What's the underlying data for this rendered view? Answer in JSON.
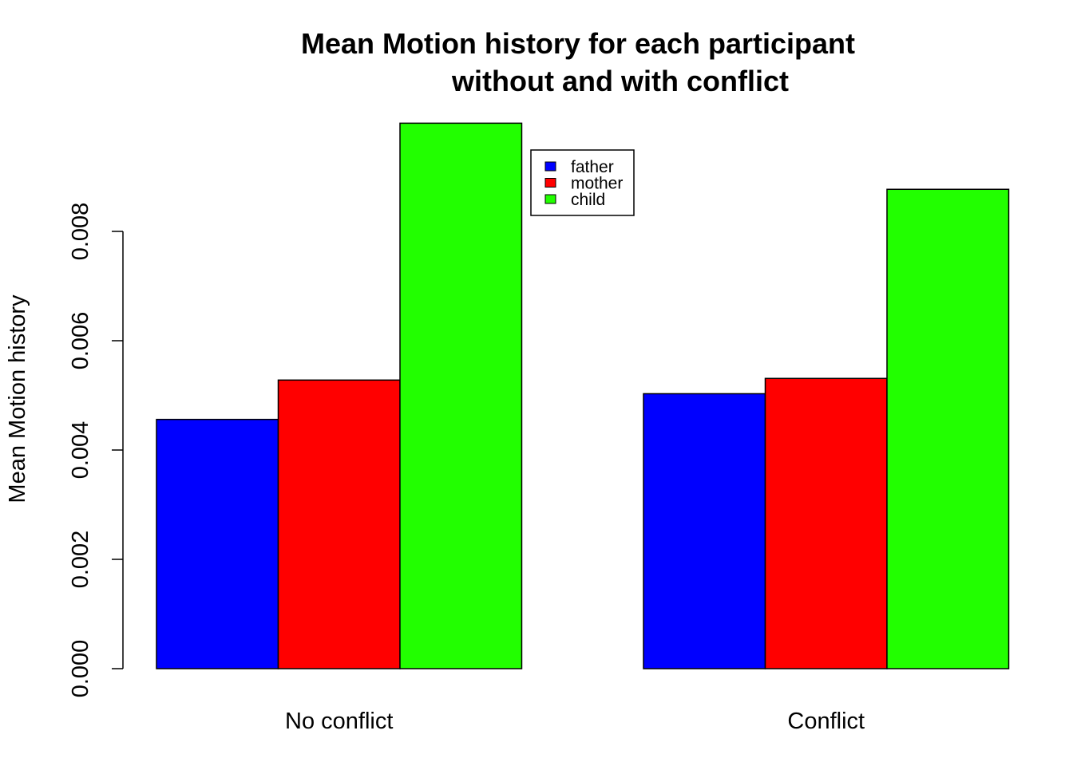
{
  "chart_data": {
    "type": "bar",
    "title_lines": [
      "Mean Motion history for each participant",
      "without and with conflict"
    ],
    "xlabel": "",
    "ylabel": "Mean Motion history",
    "categories": [
      "No conflict",
      "Conflict"
    ],
    "series": [
      {
        "name": "father",
        "color": "#0000FF",
        "values": [
          0.00456,
          0.00503
        ]
      },
      {
        "name": "mother",
        "color": "#FF0000",
        "values": [
          0.00528,
          0.00531
        ]
      },
      {
        "name": "child",
        "color": "#22FF00",
        "values": [
          0.00998,
          0.00877
        ]
      }
    ],
    "yticks": [
      0,
      0.002,
      0.004,
      0.006,
      0.008
    ],
    "ytick_labels": [
      "0.000",
      "0.002",
      "0.004",
      "0.006",
      "0.008"
    ],
    "ylim": [
      0,
      0.01
    ],
    "grid": false,
    "legend_position": "top-center"
  }
}
